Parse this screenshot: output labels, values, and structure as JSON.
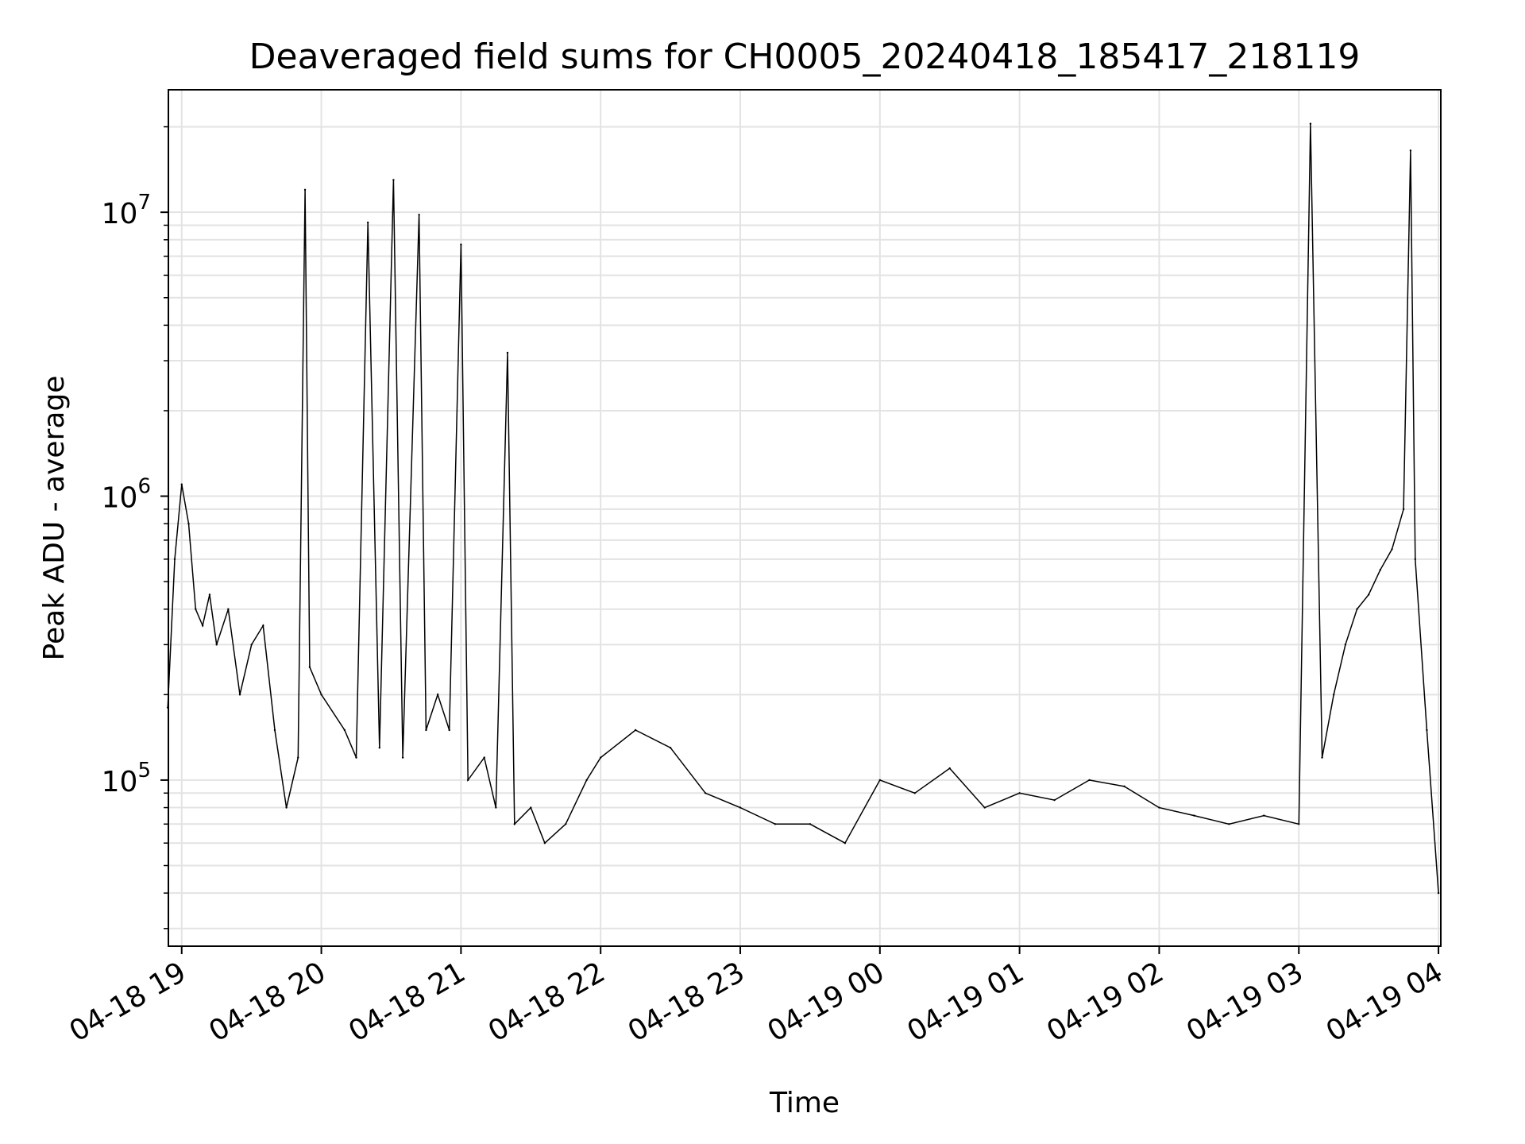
{
  "chart_data": {
    "type": "line",
    "title": "Deaveraged field sums for CH0005_20240418_185417_218119",
    "xlabel": "Time",
    "ylabel": "Peak ADU - average",
    "y_scale": "log",
    "ylim": [
      26000,
      27000000
    ],
    "xlim": [
      "2024-04-18 18:54:17",
      "2024-04-19 04:01:00"
    ],
    "x_ticks": [
      {
        "t": "2024-04-18 19:00",
        "label": "04-18 19"
      },
      {
        "t": "2024-04-18 20:00",
        "label": "04-18 20"
      },
      {
        "t": "2024-04-18 21:00",
        "label": "04-18 21"
      },
      {
        "t": "2024-04-18 22:00",
        "label": "04-18 22"
      },
      {
        "t": "2024-04-18 23:00",
        "label": "04-18 23"
      },
      {
        "t": "2024-04-19 00:00",
        "label": "04-19 00"
      },
      {
        "t": "2024-04-19 01:00",
        "label": "04-19 01"
      },
      {
        "t": "2024-04-19 02:00",
        "label": "04-19 02"
      },
      {
        "t": "2024-04-19 03:00",
        "label": "04-19 03"
      },
      {
        "t": "2024-04-19 04:00",
        "label": "04-19 04"
      }
    ],
    "y_ticks": [
      {
        "v": 100000,
        "base": "10",
        "exp": "5"
      },
      {
        "v": 1000000,
        "base": "10",
        "exp": "6"
      },
      {
        "v": 10000000,
        "base": "10",
        "exp": "7"
      }
    ],
    "grid": true,
    "line_color": "#000000",
    "series": [
      {
        "x": [
          "2024-04-18 18:54",
          "2024-04-18 18:57",
          "2024-04-18 19:00",
          "2024-04-18 19:03",
          "2024-04-18 19:06",
          "2024-04-18 19:09",
          "2024-04-18 19:12",
          "2024-04-18 19:15",
          "2024-04-18 19:20",
          "2024-04-18 19:25",
          "2024-04-18 19:30",
          "2024-04-18 19:35",
          "2024-04-18 19:40",
          "2024-04-18 19:45",
          "2024-04-18 19:50",
          "2024-04-18 19:53",
          "2024-04-18 19:55",
          "2024-04-18 20:00",
          "2024-04-18 20:10",
          "2024-04-18 20:15",
          "2024-04-18 20:20",
          "2024-04-18 20:25",
          "2024-04-18 20:31",
          "2024-04-18 20:35",
          "2024-04-18 20:42",
          "2024-04-18 20:45",
          "2024-04-18 20:50",
          "2024-04-18 20:55",
          "2024-04-18 21:00",
          "2024-04-18 21:03",
          "2024-04-18 21:10",
          "2024-04-18 21:15",
          "2024-04-18 21:20",
          "2024-04-18 21:23",
          "2024-04-18 21:30",
          "2024-04-18 21:36",
          "2024-04-18 21:45",
          "2024-04-18 21:54",
          "2024-04-18 22:00",
          "2024-04-18 22:15",
          "2024-04-18 22:30",
          "2024-04-18 22:45",
          "2024-04-18 23:00",
          "2024-04-18 23:15",
          "2024-04-18 23:30",
          "2024-04-18 23:45",
          "2024-04-19 00:00",
          "2024-04-19 00:15",
          "2024-04-19 00:30",
          "2024-04-19 00:45",
          "2024-04-19 01:00",
          "2024-04-19 01:15",
          "2024-04-19 01:30",
          "2024-04-19 01:45",
          "2024-04-19 02:00",
          "2024-04-19 02:15",
          "2024-04-19 02:30",
          "2024-04-19 02:45",
          "2024-04-19 03:00",
          "2024-04-19 03:05",
          "2024-04-19 03:10",
          "2024-04-19 03:15",
          "2024-04-19 03:20",
          "2024-04-19 03:25",
          "2024-04-19 03:30",
          "2024-04-19 03:35",
          "2024-04-19 03:40",
          "2024-04-19 03:45",
          "2024-04-19 03:48",
          "2024-04-19 03:50",
          "2024-04-19 03:55",
          "2024-04-19 04:00"
        ],
        "y": [
          180000,
          600000,
          1100000,
          800000,
          400000,
          350000,
          450000,
          300000,
          400000,
          200000,
          300000,
          350000,
          150000,
          80000,
          120000,
          12000000,
          250000,
          200000,
          150000,
          120000,
          9200000,
          130000,
          13000000,
          120000,
          9800000,
          150000,
          200000,
          150000,
          7700000,
          100000,
          120000,
          80000,
          3200000,
          70000,
          80000,
          60000,
          70000,
          100000,
          120000,
          150000,
          130000,
          90000,
          80000,
          70000,
          70000,
          60000,
          100000,
          90000,
          110000,
          80000,
          90000,
          85000,
          100000,
          95000,
          80000,
          75000,
          70000,
          75000,
          70000,
          20500000,
          120000,
          200000,
          300000,
          400000,
          450000,
          550000,
          650000,
          900000,
          16500000,
          600000,
          150000,
          40000
        ]
      }
    ]
  }
}
